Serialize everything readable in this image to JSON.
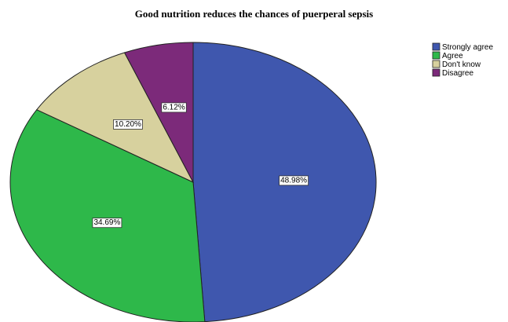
{
  "chart_data": {
    "type": "pie",
    "title": "Good nutrition reduces the chances of puerperal sepsis",
    "slices": [
      {
        "name": "Strongly agree",
        "value": 48.98,
        "label": "48.98%",
        "color": "#3F57AE"
      },
      {
        "name": "Agree",
        "value": 34.69,
        "label": "34.69%",
        "color": "#2EB84A"
      },
      {
        "name": "Don't know",
        "value": 10.2,
        "label": "10.20%",
        "color": "#D7D19E"
      },
      {
        "name": "Disagree",
        "value": 6.12,
        "label": "6.12%",
        "color": "#7C2A7A"
      }
    ],
    "start": "top",
    "direction": "clockwise",
    "legend_position": "top-right"
  }
}
